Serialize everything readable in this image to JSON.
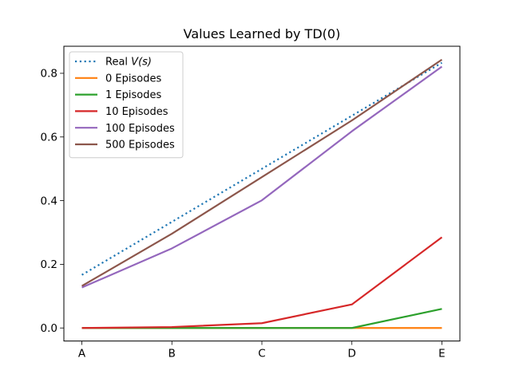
{
  "chart_data": {
    "type": "line",
    "title": "Values Learned by TD(0)",
    "xlabel": "",
    "ylabel": "",
    "categories": [
      "A",
      "B",
      "C",
      "D",
      "E"
    ],
    "ylim": [
      -0.041,
      0.885
    ],
    "yticks": [
      0.0,
      0.2,
      0.4,
      0.6,
      0.8
    ],
    "yticklabels": [
      "0.0",
      "0.2",
      "0.4",
      "0.6",
      "0.8"
    ],
    "grid": false,
    "legend_position": "top-left",
    "series": [
      {
        "name": "Real V(s)",
        "legend_prefix": "Real ",
        "legend_math": "V(s)",
        "style": "dotted",
        "color": "#1f77b4",
        "values": [
          0.1667,
          0.3333,
          0.5,
          0.6667,
          0.8333
        ]
      },
      {
        "name": "0 Episodes",
        "style": "solid",
        "color": "#ff7f0e",
        "values": [
          0.0,
          0.0,
          0.0,
          0.0,
          0.0
        ]
      },
      {
        "name": "1 Episodes",
        "style": "solid",
        "color": "#2ca02c",
        "values": [
          0.0,
          0.0,
          0.0,
          0.0,
          0.06
        ]
      },
      {
        "name": "10 Episodes",
        "style": "solid",
        "color": "#d62728",
        "values": [
          0.0,
          0.003,
          0.015,
          0.074,
          0.285
        ]
      },
      {
        "name": "100 Episodes",
        "style": "solid",
        "color": "#9467bd",
        "values": [
          0.127,
          0.25,
          0.401,
          0.618,
          0.821
        ]
      },
      {
        "name": "500 Episodes",
        "style": "solid",
        "color": "#8c564b",
        "values": [
          0.132,
          0.296,
          0.474,
          0.652,
          0.843
        ]
      }
    ]
  }
}
